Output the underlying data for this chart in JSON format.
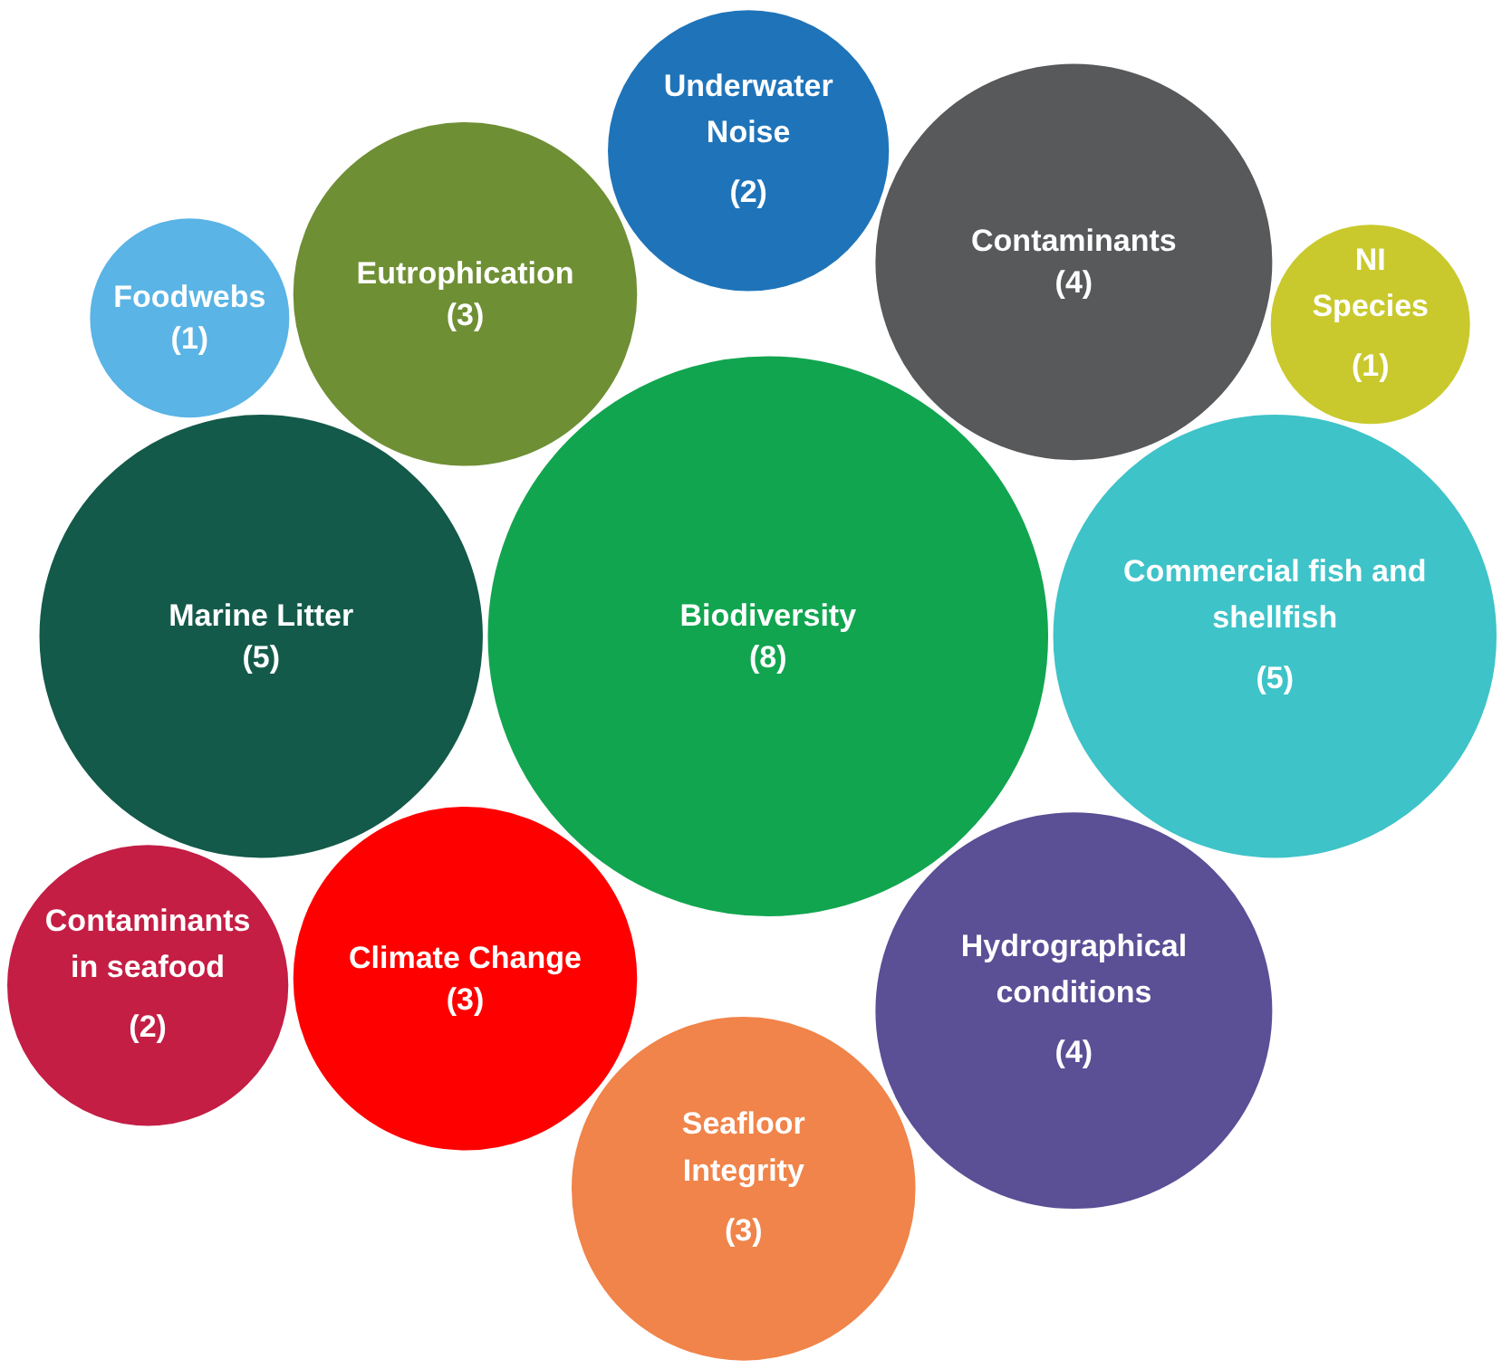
{
  "chart_data": {
    "type": "other",
    "categories": [
      "Contaminants",
      "Hydrographical conditions",
      "Climate Change",
      "Foodwebs",
      "Eutrophication",
      "Biodiversity",
      "Underwater Noise",
      "NI Species",
      "Seafloor Integrity",
      "Commercial fish and shellfish",
      "Marine Litter",
      "Contaminants in seafood"
    ],
    "values": [
      4,
      4,
      3,
      1,
      3,
      8,
      2,
      1,
      3,
      5,
      5,
      2
    ],
    "value_labels": [
      "(4)",
      "(4)",
      "(3)",
      "(1)",
      "(3)",
      "(8)",
      "(2)",
      "(1)",
      "(3)",
      "(5)",
      "(5)",
      "(2)"
    ],
    "colors": [
      "#58595b",
      "#5b4f96",
      "#ff0000",
      "#5ab4e5",
      "#6f8f35",
      "#12a550",
      "#1f74b9",
      "#c9c92d",
      "#f0844a",
      "#3ec3c8",
      "#145a4a",
      "#c41e45"
    ]
  }
}
